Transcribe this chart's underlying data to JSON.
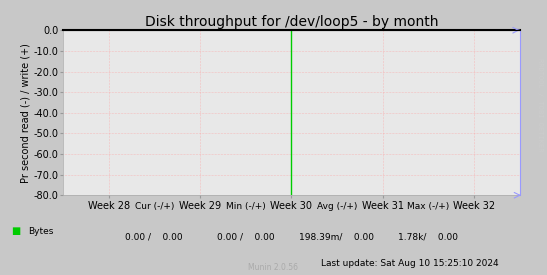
{
  "title": "Disk throughput for /dev/loop5 - by month",
  "ylabel": "Pr second read (-) / write (+)",
  "ylim": [
    -80,
    0
  ],
  "yticks": [
    0,
    -10,
    -20,
    -30,
    -40,
    -50,
    -60,
    -70,
    -80
  ],
  "xlim": [
    0,
    5
  ],
  "xtick_positions": [
    0.5,
    1.5,
    2.5,
    3.5,
    4.5
  ],
  "xtick_labels": [
    "Week 28",
    "Week 29",
    "Week 30",
    "Week 31",
    "Week 32"
  ],
  "bg_color": "#c8c8c8",
  "plot_bg_color": "#e8e8e8",
  "grid_color": "#ff9999",
  "top_line_color": "#000000",
  "right_line_color": "#9999ff",
  "spike_x": 2.5,
  "spike_color": "#00cc00",
  "legend_label": "Bytes",
  "legend_color": "#00cc00",
  "cur_label": "Cur (-/+)",
  "min_label": "Min (-/+)",
  "avg_label": "Avg (-/+)",
  "max_label": "Max (-/+)",
  "cur_val": "0.00 /    0.00",
  "min_val": "0.00 /    0.00",
  "avg_val": "198.39m/    0.00",
  "max_val": "1.78k/    0.00",
  "last_update": "Last update: Sat Aug 10 15:25:10 2024",
  "munin_version": "Munin 2.0.56",
  "title_fontsize": 10,
  "axis_fontsize": 7,
  "legend_fontsize": 7,
  "footer_fontsize": 6.5,
  "rrdtool_fontsize": 5
}
